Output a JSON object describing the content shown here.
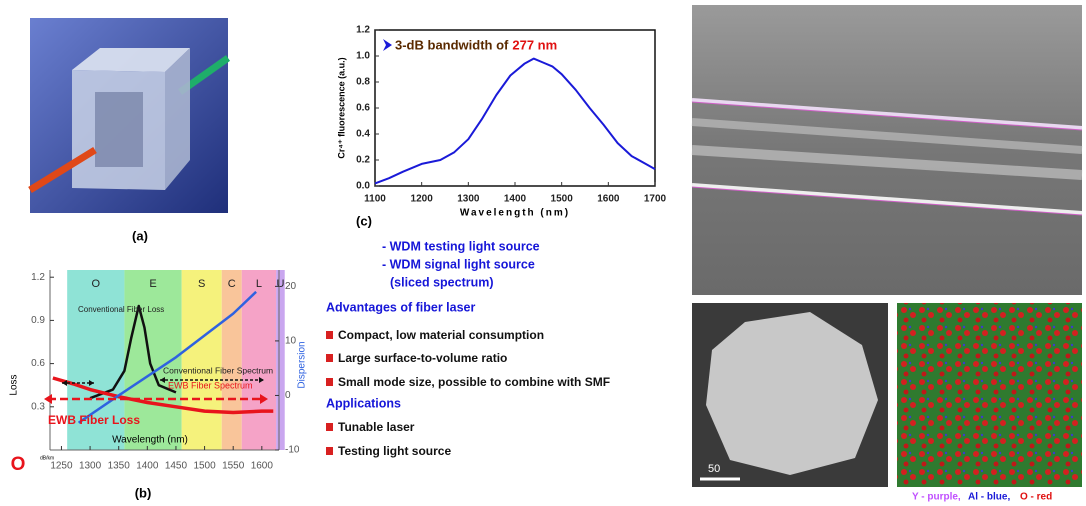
{
  "panel_labels": [
    "(a)",
    "(c)",
    "(b)"
  ],
  "chart_data": [
    {
      "type": "line",
      "title": "3-dB bandwidth of",
      "title_value": "277 nm",
      "x_label": "Wavelength (nm)",
      "y_label": "Cr⁴⁺ fluorescence (a.u.)",
      "xlim": [
        1100,
        1700
      ],
      "xticks": [
        1100,
        1200,
        1300,
        1400,
        1500,
        1600,
        1700
      ],
      "ylim": [
        0,
        1.2
      ],
      "yticks": [
        {
          "value": 0,
          "label": "0.0"
        },
        0.2,
        0.4,
        0.6,
        0.8,
        {
          "value": 1,
          "label": "1.0"
        },
        1.2
      ],
      "series": [
        {
          "color": "#1a1ad8",
          "x": [
            1100,
            1130,
            1160,
            1200,
            1240,
            1270,
            1300,
            1330,
            1360,
            1390,
            1420,
            1440,
            1460,
            1480,
            1500,
            1530,
            1560,
            1590,
            1620,
            1650,
            1680,
            1700
          ],
          "values": [
            0.02,
            0.06,
            0.11,
            0.17,
            0.2,
            0.26,
            0.36,
            0.52,
            0.7,
            0.85,
            0.94,
            0.98,
            0.95,
            0.92,
            0.86,
            0.74,
            0.6,
            0.47,
            0.33,
            0.23,
            0.17,
            0.13
          ]
        }
      ]
    },
    {
      "type": "line",
      "x_label": "Wavelength (nm)",
      "y_label": "Loss",
      "y2_label": "Dispersion",
      "y_unit": "dB/km",
      "corner_label": "O",
      "xlim": [
        1230,
        1630
      ],
      "xticks": [
        1250,
        1300,
        1350,
        1400,
        1450,
        1500,
        1550,
        1600
      ],
      "ylim": [
        0,
        1.25
      ],
      "yticks": [
        0.3,
        0.6,
        0.9,
        1.2
      ],
      "y2lim": [
        -10,
        23
      ],
      "y2ticks": [
        -10,
        0,
        10,
        20
      ],
      "bands": [
        {
          "label": "O",
          "range": [
            1260,
            1360
          ],
          "color": "#8fe3d6"
        },
        {
          "label": "E",
          "range": [
            1360,
            1460
          ],
          "color": "#9de89a"
        },
        {
          "label": "S",
          "range": [
            1460,
            1530
          ],
          "color": "#f5f27c"
        },
        {
          "label": "C",
          "range": [
            1530,
            1565
          ],
          "color": "#f9c59a"
        },
        {
          "label": "L",
          "range": [
            1565,
            1625
          ],
          "color": "#f5a3c7"
        },
        {
          "label": "U",
          "range": [
            1625,
            1640
          ],
          "color": "#c9a6ef"
        }
      ],
      "series": [
        {
          "name": "Conventional Fiber Loss",
          "color": "#111111",
          "x": [
            1300,
            1340,
            1360,
            1372,
            1385,
            1395,
            1405,
            1420,
            1450
          ],
          "values": [
            0.36,
            0.42,
            0.55,
            0.78,
            1.0,
            0.85,
            0.6,
            0.45,
            0.4
          ]
        },
        {
          "name": "EWB Fiber Loss",
          "color": "#e8141c",
          "x": [
            1235,
            1270,
            1300,
            1350,
            1400,
            1450,
            1500,
            1550,
            1600,
            1620
          ],
          "values": [
            0.5,
            0.46,
            0.42,
            0.37,
            0.33,
            0.3,
            0.27,
            0.26,
            0.27,
            0.27
          ]
        },
        {
          "color": "#2f62e0",
          "axis": "y2",
          "x": [
            1280,
            1350,
            1450,
            1550,
            1590
          ],
          "values": [
            -5,
            0,
            7,
            15,
            19
          ]
        }
      ],
      "annotations": [
        "Conventional Fiber Spectrum",
        "EWB Fiber Spectrum"
      ]
    }
  ],
  "text_block": {
    "wdm_items": [
      "- WDM testing light source",
      "- WDM signal light source",
      "(sliced spectrum)"
    ],
    "advantages_heading": "Advantages of fiber laser",
    "advantages": [
      "Compact, low material consumption",
      "Large surface-to-volume ratio",
      "Small mode size, possible to combine with SMF"
    ],
    "applications_heading": "Applications",
    "applications": [
      "Tunable laser",
      "Testing  light source"
    ]
  },
  "images": {
    "scale_bar": "50",
    "caption": [
      "Y - purple,",
      "Al - blue,",
      "O - red"
    ]
  }
}
